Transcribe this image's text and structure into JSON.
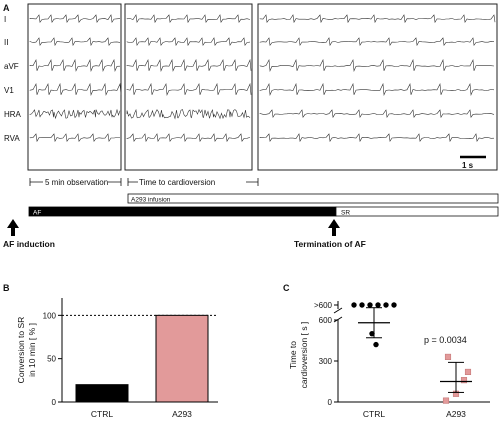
{
  "panel_a": {
    "letter": "A",
    "leads": [
      "I",
      "II",
      "aVF",
      "V1",
      "HRA",
      "RVA"
    ],
    "scale_label": "1 s",
    "observation_label": "5 min observation",
    "cardioversion_label": "Time to cardioversion",
    "infusion_label": "A293 infusion",
    "af_label": "AF",
    "sr_label": "SR",
    "af_induction_label": "AF induction",
    "termination_label": "Termination of AF"
  },
  "chart_data": [
    {
      "panel": "B",
      "type": "bar",
      "ylabel": "Conversion to SR in 10 min [ % ]",
      "ylabel_lines": [
        "Conversion to SR",
        "in 10 min [ % ]"
      ],
      "categories": [
        "CTRL",
        "A293"
      ],
      "values": [
        20,
        100
      ],
      "colors": [
        "#000000",
        "#e29a9a"
      ],
      "yticks": [
        0,
        50,
        100
      ],
      "ylim": [
        0,
        120
      ],
      "reference_line": 100
    },
    {
      "panel": "C",
      "type": "scatter",
      "ylabel": "Time to cardioversion [ s ]",
      "ylabel_lines": [
        "Time to",
        "cardioversion [ s ]"
      ],
      "categories": [
        "CTRL",
        "A293"
      ],
      "yticks": [
        "0",
        "300",
        "600",
        ">600"
      ],
      "axis_break": true,
      "annotation": "p = 0.0034",
      "series": [
        {
          "category": "CTRL",
          "color": "#000000",
          "marker": "circle",
          "values": [
            ">600",
            ">600",
            ">600",
            ">600",
            ">600",
            ">600",
            500,
            420
          ],
          "mean": 580,
          "error_low": 470,
          "error_high": 690
        },
        {
          "category": "A293",
          "color": "#e29a9a",
          "marker": "square",
          "values": [
            330,
            220,
            160,
            60,
            10
          ],
          "mean": 150,
          "error_low": 70,
          "error_high": 290
        }
      ]
    }
  ]
}
